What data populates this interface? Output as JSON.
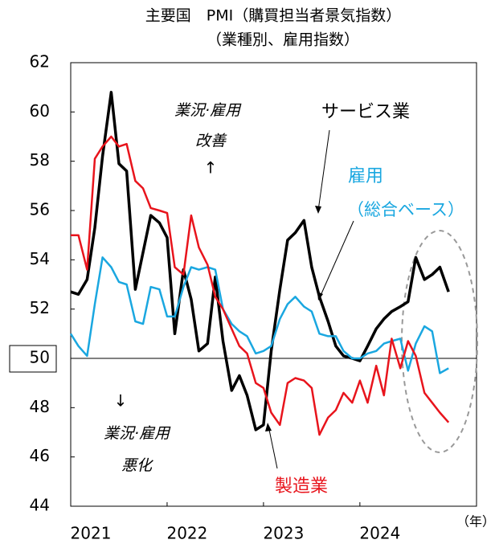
{
  "chart_data": {
    "type": "line",
    "title": "主要国　PMI（購買担当者景気指数）",
    "subtitle": "（業種別、雇用指数）",
    "x_unit": "（年）",
    "x": [
      2021,
      2021.08,
      2021.17,
      2021.25,
      2021.33,
      2021.42,
      2021.5,
      2021.58,
      2021.67,
      2021.75,
      2021.83,
      2021.92,
      2022,
      2022.08,
      2022.17,
      2022.25,
      2022.33,
      2022.42,
      2022.5,
      2022.58,
      2022.67,
      2022.75,
      2022.83,
      2022.92,
      2023,
      2023.08,
      2023.17,
      2023.25,
      2023.33,
      2023.42,
      2023.5,
      2023.58,
      2023.67,
      2023.75,
      2023.83,
      2023.92,
      2024,
      2024.08,
      2024.17,
      2024.25,
      2024.33,
      2024.42,
      2024.5,
      2024.58,
      2024.67,
      2024.75,
      2024.83,
      2024.92
    ],
    "xlim": [
      2021,
      2025.21
    ],
    "xticks": [
      2021,
      2022,
      2023,
      2024
    ],
    "ylim": [
      44,
      62
    ],
    "yticks": [
      44,
      46,
      48,
      50,
      52,
      54,
      56,
      58,
      60,
      62
    ],
    "reference_line": 50,
    "series": [
      {
        "name": "サービス業",
        "color": "#000000",
        "width": 3.5,
        "values": [
          52.7,
          52.6,
          53.2,
          55.3,
          58.2,
          60.8,
          57.9,
          57.6,
          52.8,
          54.3,
          55.8,
          55.5,
          54.9,
          51.0,
          53.6,
          52.4,
          50.3,
          50.6,
          53.3,
          50.7,
          48.7,
          49.3,
          48.5,
          47.1,
          47.3,
          50.3,
          52.8,
          54.8,
          55.1,
          55.6,
          53.7,
          52.5,
          51.5,
          50.5,
          50.1,
          50.0,
          49.9,
          50.5,
          51.2,
          51.6,
          51.9,
          52.1,
          52.3,
          54.1,
          53.2,
          53.4,
          53.7,
          52.7
        ]
      },
      {
        "name": "雇用",
        "color": "#1aa7e0",
        "width": 2.5,
        "values": [
          51.0,
          50.5,
          50.1,
          52.2,
          54.1,
          53.7,
          53.1,
          53.0,
          51.5,
          51.4,
          52.9,
          52.8,
          51.7,
          51.7,
          52.9,
          53.7,
          53.6,
          53.7,
          53.6,
          52.0,
          51.4,
          51.1,
          50.9,
          50.2,
          50.3,
          50.5,
          51.6,
          52.2,
          52.5,
          52.1,
          51.9,
          51.0,
          50.9,
          50.9,
          50.3,
          50.0,
          50.0,
          50.2,
          50.3,
          50.6,
          50.7,
          50.8,
          49.5,
          50.6,
          51.3,
          51.1,
          49.4,
          49.6
        ]
      },
      {
        "name": "製造業",
        "color": "#e8141c",
        "width": 2.5,
        "values": [
          55.0,
          55.0,
          53.6,
          58.1,
          58.6,
          59.0,
          58.6,
          58.7,
          57.2,
          56.9,
          56.1,
          56.0,
          55.9,
          53.7,
          53.4,
          55.8,
          54.5,
          53.8,
          52.5,
          52.0,
          51.2,
          50.5,
          50.2,
          49.0,
          48.8,
          47.8,
          47.3,
          49.0,
          49.2,
          49.1,
          48.8,
          46.9,
          47.6,
          47.9,
          48.6,
          48.2,
          49.1,
          48.2,
          49.7,
          48.5,
          50.8,
          49.6,
          50.7,
          50.1,
          48.6,
          48.2,
          47.8,
          47.4
        ]
      }
    ],
    "annotations": [
      "業況·雇用",
      "改善",
      "↑",
      "↓",
      "業況·雇用",
      "悪化",
      "（総合ベース）"
    ]
  }
}
